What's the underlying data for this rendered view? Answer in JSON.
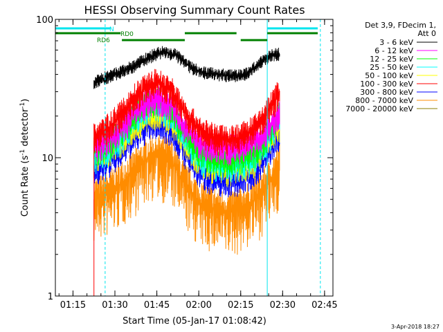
{
  "chart_data": {
    "type": "line",
    "title": "HESSI Observing Summary Count Rates",
    "xlabel": "Start Time (05-Jan-17 01:08:42)",
    "ylabel": "Count Rate (s⁻¹ detector⁻¹)",
    "ylabel_main": "Count Rate (s",
    "ylabel_sup1": "-1",
    "ylabel_mid": " detector",
    "ylabel_sup2": "-1",
    "ylabel_end": ")",
    "yscale": "log",
    "ylim": [
      1,
      100
    ],
    "xlim": [
      "01:08:42",
      "02:48:00"
    ],
    "x_ticks": [
      "01:15",
      "01:30",
      "01:45",
      "02:00",
      "02:15",
      "02:30",
      "02:45"
    ],
    "y_ticks": [
      "1",
      "10",
      "100"
    ],
    "legend_header": [
      "Det 3,9, FDecim 1,",
      "Att 0"
    ],
    "legend_position": "right",
    "footer_date": "3-Apr-2018 18:27",
    "data_start": "01:22:30",
    "data_end": "02:29:00",
    "series": [
      {
        "name": "3 - 6 keV",
        "color": "#000000",
        "times": [
          "01:22:30",
          "01:30",
          "01:37",
          "01:42",
          "01:47",
          "01:52",
          "01:57",
          "02:02",
          "02:07",
          "02:12",
          "02:17",
          "02:22",
          "02:26",
          "02:29"
        ],
        "values": [
          35,
          40,
          46,
          53,
          58,
          55,
          45,
          41,
          40,
          39,
          40,
          48,
          55,
          56
        ]
      },
      {
        "name": "6 - 12 keV",
        "color": "#ff00ff",
        "times": [
          "01:22:30",
          "01:27",
          "01:32",
          "01:37",
          "01:42",
          "01:45",
          "01:50",
          "01:55",
          "02:00",
          "02:05",
          "02:10",
          "02:15",
          "02:20",
          "02:25",
          "02:29"
        ],
        "values": [
          12,
          13,
          16,
          21,
          26,
          27,
          24,
          17,
          13,
          12,
          11.5,
          12,
          13,
          16,
          22
        ]
      },
      {
        "name": "12 - 25 keV",
        "color": "#00ff00",
        "times": [
          "01:22:30",
          "01:27",
          "01:32",
          "01:37",
          "01:42",
          "01:45",
          "01:50",
          "01:55",
          "02:00",
          "02:05",
          "02:10",
          "02:15",
          "02:20",
          "02:25",
          "02:29"
        ],
        "values": [
          11,
          12,
          15,
          20,
          25,
          26,
          23,
          15,
          11,
          10,
          9.5,
          10,
          11,
          15,
          21
        ]
      },
      {
        "name": "25 - 50 keV",
        "color": "#00ffff",
        "times": [
          "01:22:30",
          "01:27",
          "01:32",
          "01:37",
          "01:42",
          "01:45",
          "01:50",
          "01:55",
          "02:00",
          "02:05",
          "02:10",
          "02:15",
          "02:20",
          "02:25",
          "02:29"
        ],
        "values": [
          10,
          11,
          14,
          19,
          23,
          24,
          21,
          14,
          10,
          9,
          8.5,
          9,
          10,
          14,
          20
        ]
      },
      {
        "name": "50 - 100 keV",
        "color": "#ffff00",
        "times": [
          "01:22:30",
          "01:27",
          "01:32",
          "01:37",
          "01:42",
          "01:45",
          "01:50",
          "01:55",
          "02:00",
          "02:05",
          "02:10",
          "02:15",
          "02:20",
          "02:25",
          "02:29"
        ],
        "values": [
          10,
          11,
          13,
          17,
          20,
          21,
          19,
          13,
          9.5,
          8.5,
          8,
          8.5,
          9.5,
          13,
          17
        ]
      },
      {
        "name": "100 - 300 keV",
        "color": "#ff0000",
        "times": [
          "01:22:30",
          "01:27",
          "01:32",
          "01:37",
          "01:42",
          "01:45",
          "01:50",
          "01:55",
          "02:00",
          "02:05",
          "02:10",
          "02:15",
          "02:20",
          "02:25",
          "02:29"
        ],
        "values": [
          14,
          16,
          20,
          27,
          33,
          35,
          31,
          21,
          16,
          14,
          13.5,
          14,
          16,
          22,
          30
        ]
      },
      {
        "name": "300 - 800 keV",
        "color": "#0000ff",
        "times": [
          "01:22:30",
          "01:27",
          "01:32",
          "01:37",
          "01:42",
          "01:45",
          "01:50",
          "01:55",
          "02:00",
          "02:05",
          "02:10",
          "02:15",
          "02:20",
          "02:25",
          "02:29"
        ],
        "values": [
          8,
          9,
          11,
          14,
          17,
          18,
          16,
          11,
          8,
          7,
          6.8,
          7,
          8,
          11,
          15
        ]
      },
      {
        "name": "800 - 7000 keV",
        "color": "#ff8c00",
        "times": [
          "01:22:30",
          "01:27",
          "01:32",
          "01:37",
          "01:42",
          "01:45",
          "01:50",
          "01:55",
          "02:00",
          "02:05",
          "02:10",
          "02:15",
          "02:20",
          "02:25",
          "02:29"
        ],
        "values": [
          5,
          5.5,
          6.5,
          8,
          10,
          10.5,
          9.5,
          6.5,
          4.8,
          4.3,
          4,
          4.3,
          5,
          6.5,
          9
        ]
      },
      {
        "name": "7000 - 20000 keV",
        "color": "#8b7d00",
        "times": [],
        "values": []
      }
    ],
    "flags": [
      {
        "label": "N",
        "color": "#00e5ee",
        "segments": [
          [
            "01:08:42",
            "01:28:30"
          ],
          [
            "02:24:30",
            "02:44:30"
          ]
        ]
      },
      {
        "label": "RD0",
        "color": "#008000",
        "segments": [
          [
            "01:08:42",
            "01:32:00"
          ],
          [
            "01:55:00",
            "02:13:30"
          ],
          [
            "02:24:30",
            "02:47:00"
          ]
        ]
      },
      {
        "label": "RD6",
        "color": "#008000",
        "segments": [
          [
            "01:32:30",
            "01:55:00"
          ],
          [
            "02:15:00",
            "02:24:30"
          ]
        ]
      }
    ],
    "vertical_markers": [
      {
        "time": "01:08:42",
        "style": "solid",
        "color": "#00e5ee"
      },
      {
        "time": "01:26:30",
        "style": "dashed",
        "color": "#00e5ee"
      },
      {
        "time": "02:24:30",
        "style": "solid",
        "color": "#00e5ee"
      },
      {
        "time": "02:43:30",
        "style": "dashed",
        "color": "#00e5ee"
      }
    ],
    "grid": false
  }
}
